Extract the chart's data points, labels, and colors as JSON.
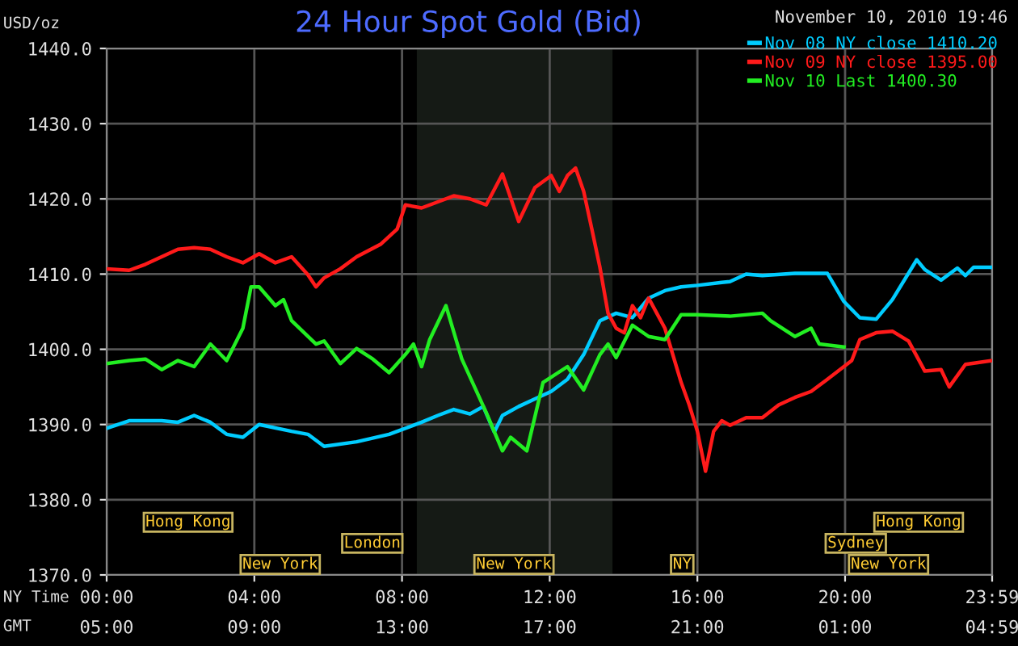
{
  "chart_data": {
    "type": "line",
    "title": "24 Hour Spot Gold (Bid)",
    "subtitle": "November 10, 2010 19:46",
    "ylabel": "USD/oz",
    "xlabel": "NY Time",
    "x2label": "GMT",
    "xlim": [
      0,
      23.983
    ],
    "ylim": [
      1370,
      1440
    ],
    "xticks": [
      {
        "value": 0,
        "label": "00:00"
      },
      {
        "value": 4,
        "label": "04:00"
      },
      {
        "value": 8,
        "label": "08:00"
      },
      {
        "value": 12,
        "label": "12:00"
      },
      {
        "value": 16,
        "label": "16:00"
      },
      {
        "value": 20,
        "label": "20:00"
      },
      {
        "value": 23.983,
        "label": "23:59"
      }
    ],
    "x2lim": [
      "2010-11-10T05:00",
      "2010-11-11T04:59"
    ],
    "x2ticks": [
      {
        "value": "2010-11-10T05:00",
        "label": "05:00"
      },
      {
        "value": "2010-11-10T09:00",
        "label": "09:00"
      },
      {
        "value": "2010-11-10T13:00",
        "label": "13:00"
      },
      {
        "value": "2010-11-10T17:00",
        "label": "17:00"
      },
      {
        "value": "2010-11-10T21:00",
        "label": "21:00"
      },
      {
        "value": "2010-11-11T01:00",
        "label": "01:00"
      },
      {
        "value": "2010-11-11T04:59",
        "label": "04:59"
      }
    ],
    "yticks": [
      {
        "value": 1370,
        "label": "1370.0"
      },
      {
        "value": 1380,
        "label": "1380.0"
      },
      {
        "value": 1390,
        "label": "1390.0"
      },
      {
        "value": 1400,
        "label": "1400.0"
      },
      {
        "value": 1410,
        "label": "1410.0"
      },
      {
        "value": 1420,
        "label": "1420.0"
      },
      {
        "value": 1430,
        "label": "1430.0"
      },
      {
        "value": 1440,
        "label": "1440.0"
      }
    ],
    "grid": true,
    "legend": "top right",
    "bands": [
      {
        "axis": "x",
        "from": 8.4,
        "to": 13.7,
        "color": "#151a15"
      }
    ],
    "annotations": [
      "Hong Kong",
      "London",
      "New York",
      "New York",
      "NY",
      "Hong Kong",
      "Sydney",
      "New York"
    ],
    "series": [
      {
        "name": "Nov 08 NY close 1410.20",
        "color": "#00ccff",
        "x": [
          0,
          0.61,
          1.49,
          1.93,
          2.37,
          2.81,
          3.25,
          3.69,
          4.13,
          5.01,
          5.45,
          5.89,
          6.77,
          7.65,
          8.53,
          8.97,
          9.4,
          9.84,
          10.2,
          10.5,
          10.72,
          11.16,
          11.6,
          12.04,
          12.48,
          12.92,
          13.36,
          13.8,
          14.24,
          14.68,
          15.12,
          15.56,
          16.0,
          16.66,
          16.88,
          17.32,
          17.76,
          18.64,
          19.52,
          19.96,
          20.4,
          20.84,
          21.28,
          21.94,
          22.16,
          22.6,
          23.04,
          23.26,
          23.48,
          23.983
        ],
        "values": [
          1389.5,
          1390.5,
          1390.5,
          1390.3,
          1391.2,
          1390.3,
          1388.7,
          1388.3,
          1390,
          1389.1,
          1388.7,
          1387.1,
          1387.7,
          1388.7,
          1390.3,
          1391.2,
          1392,
          1391.4,
          1392.4,
          1389,
          1391.2,
          1392.4,
          1393.4,
          1394.4,
          1396,
          1399.3,
          1403.8,
          1404.8,
          1404.2,
          1406.8,
          1407.8,
          1408.3,
          1408.5,
          1408.9,
          1409,
          1410,
          1409.8,
          1410.1,
          1410.1,
          1406.4,
          1404.2,
          1404,
          1406.6,
          1411.9,
          1410.6,
          1409.2,
          1410.8,
          1409.8,
          1410.9,
          1410.9
        ]
      },
      {
        "name": "Nov 09 NY close 1395.00",
        "color": "#ff1a1a",
        "x": [
          0,
          0.61,
          1.05,
          1.49,
          1.93,
          2.37,
          2.81,
          3.25,
          3.69,
          4.13,
          4.57,
          5.01,
          5.45,
          5.67,
          5.89,
          6.33,
          6.77,
          7.43,
          7.87,
          8.09,
          8.53,
          8.97,
          9.4,
          9.84,
          10.28,
          10.72,
          11.16,
          11.6,
          12.04,
          12.26,
          12.48,
          12.7,
          12.92,
          13.14,
          13.36,
          13.58,
          13.8,
          14.02,
          14.24,
          14.46,
          14.68,
          14.9,
          15.12,
          15.56,
          15.78,
          16.0,
          16.22,
          16.44,
          16.66,
          16.88,
          17.32,
          17.76,
          18.2,
          18.64,
          19.08,
          19.52,
          20.18,
          20.4,
          20.84,
          21.28,
          21.72,
          22.16,
          22.6,
          22.82,
          23.26,
          23.983
        ],
        "values": [
          1410.7,
          1410.5,
          1411.3,
          1412.3,
          1413.3,
          1413.5,
          1413.3,
          1412.3,
          1411.5,
          1412.7,
          1411.5,
          1412.3,
          1409.9,
          1408.3,
          1409.5,
          1410.7,
          1412.3,
          1414,
          1416,
          1419.2,
          1418.8,
          1419.6,
          1420.4,
          1420,
          1419.2,
          1423.3,
          1417,
          1421.5,
          1423.1,
          1421,
          1423.1,
          1424.1,
          1421,
          1416,
          1410.9,
          1404.8,
          1402.8,
          1402.2,
          1405.8,
          1404.2,
          1406.8,
          1404.8,
          1402.8,
          1395.6,
          1392.6,
          1389.1,
          1383.8,
          1389.1,
          1390.5,
          1389.9,
          1390.9,
          1390.9,
          1392.6,
          1393.6,
          1394.4,
          1396,
          1398.5,
          1401.3,
          1402.2,
          1402.4,
          1401.1,
          1397.1,
          1397.3,
          1395,
          1398,
          1398.5
        ]
      },
      {
        "name": "Nov 10 Last 1400.30",
        "color": "#22ee22",
        "x": [
          0,
          0.61,
          1.05,
          1.49,
          1.93,
          2.37,
          2.81,
          3.25,
          3.69,
          3.91,
          4.13,
          4.57,
          4.79,
          5.01,
          5.67,
          5.89,
          6.33,
          6.77,
          7.21,
          7.65,
          8.09,
          8.31,
          8.53,
          8.75,
          9.19,
          9.62,
          10.28,
          10.72,
          10.94,
          11.38,
          11.82,
          12.48,
          12.92,
          13.36,
          13.58,
          13.8,
          14.24,
          14.68,
          15.12,
          15.56,
          15.99,
          16.88,
          17.76,
          17.98,
          18.64,
          19.08,
          19.3,
          19.97
        ],
        "values": [
          1398.1,
          1398.5,
          1398.7,
          1397.3,
          1398.5,
          1397.7,
          1400.7,
          1398.5,
          1402.8,
          1408.3,
          1408.3,
          1405.8,
          1406.6,
          1403.8,
          1400.7,
          1401.1,
          1398.1,
          1400.1,
          1398.7,
          1396.9,
          1399.3,
          1400.7,
          1397.7,
          1401.3,
          1405.8,
          1398.7,
          1391.6,
          1386.5,
          1388.3,
          1386.5,
          1395.6,
          1397.7,
          1394.6,
          1399.3,
          1400.7,
          1398.9,
          1403.2,
          1401.7,
          1401.3,
          1404.6,
          1404.6,
          1404.4,
          1404.8,
          1403.8,
          1401.7,
          1402.8,
          1400.7,
          1400.3
        ]
      }
    ]
  }
}
